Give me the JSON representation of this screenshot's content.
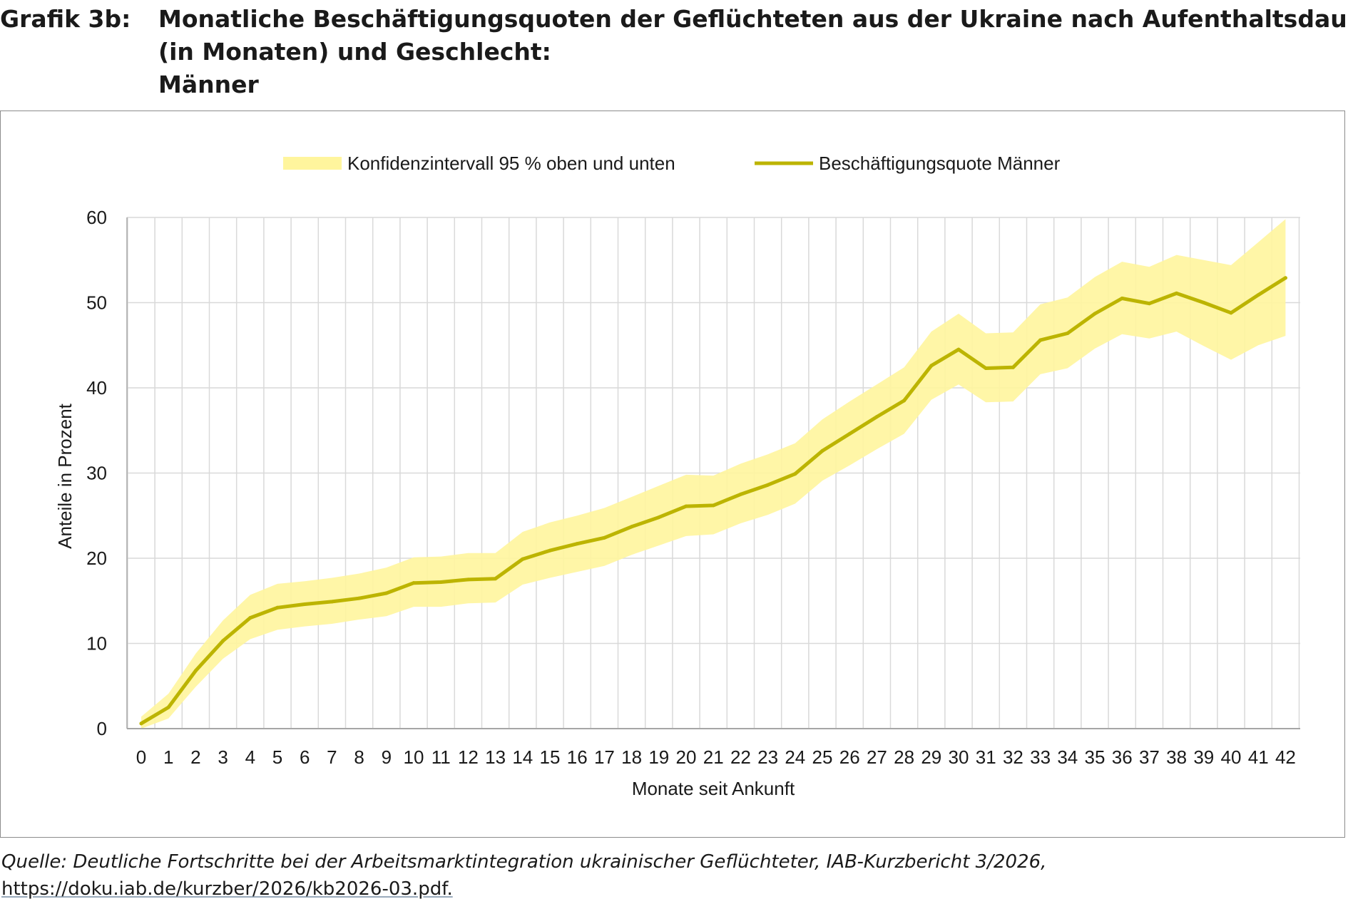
{
  "header": {
    "label": "Grafik 3b:",
    "title_line1": "Monatliche Beschäftigungsquoten der Geflüchteten aus der Ukraine nach Aufenthaltsdauer",
    "title_line2": "(in Monaten) und Geschlecht:",
    "title_line3": "Männer"
  },
  "footer": {
    "source_text": "Quelle: Deutliche Fortschritte bei der Arbeitsmarktintegration ukrainischer Geflüchteter, IAB-Kurzbericht 3/2026,",
    "link_text": "https://doku.iab.de/kurzber/2026/kb2026-03.pdf."
  },
  "colors": {
    "line": "#bcb400",
    "band": "#fff59d",
    "grid": "#d9d9d9",
    "axis": "#a6a6a6"
  },
  "chart_data": {
    "type": "line",
    "xlabel": "Monate seit Ankunft",
    "ylabel": "Anteile in Prozent",
    "ylim": [
      0,
      60
    ],
    "yticks": [
      0,
      10,
      20,
      30,
      40,
      50,
      60
    ],
    "grid": "vertical and horizontal",
    "legend_position": "top-center",
    "x": [
      0,
      1,
      2,
      3,
      4,
      5,
      6,
      7,
      8,
      9,
      10,
      11,
      12,
      13,
      14,
      15,
      16,
      17,
      18,
      19,
      20,
      21,
      22,
      23,
      24,
      25,
      26,
      27,
      28,
      29,
      30,
      31,
      32,
      33,
      34,
      35,
      36,
      37,
      38,
      39,
      40,
      41,
      42
    ],
    "series": [
      {
        "name": "Beschäftigungsquote Männer",
        "values": [
          0.6,
          2.5,
          6.8,
          10.3,
          13.0,
          14.2,
          14.6,
          14.9,
          15.3,
          15.9,
          17.1,
          17.2,
          17.5,
          17.6,
          19.9,
          20.9,
          21.7,
          22.4,
          23.7,
          24.8,
          26.1,
          26.2,
          27.5,
          28.6,
          29.9,
          32.6,
          34.6,
          36.6,
          38.5,
          42.6,
          44.5,
          42.3,
          42.4,
          45.6,
          46.4,
          48.7,
          50.5,
          49.9,
          51.1,
          50.0,
          48.8,
          50.9,
          52.9
        ]
      },
      {
        "name": "Konfidenzintervall 95 % oben und unten",
        "upper": [
          1.4,
          4.1,
          8.8,
          12.7,
          15.7,
          17.0,
          17.3,
          17.7,
          18.2,
          18.9,
          20.1,
          20.2,
          20.6,
          20.6,
          23.1,
          24.2,
          25.0,
          25.9,
          27.2,
          28.5,
          29.8,
          29.7,
          31.1,
          32.2,
          33.5,
          36.3,
          38.4,
          40.4,
          42.4,
          46.6,
          48.7,
          46.4,
          46.5,
          49.8,
          50.6,
          53.0,
          54.8,
          54.2,
          55.6,
          55.0,
          54.4,
          57.1,
          59.8
        ],
        "lower": [
          0.0,
          1.2,
          4.9,
          8.2,
          10.5,
          11.6,
          12.0,
          12.3,
          12.8,
          13.2,
          14.3,
          14.3,
          14.7,
          14.8,
          16.9,
          17.7,
          18.4,
          19.1,
          20.4,
          21.5,
          22.6,
          22.8,
          24.1,
          25.1,
          26.4,
          29.1,
          30.9,
          32.8,
          34.6,
          38.6,
          40.4,
          38.3,
          38.4,
          41.6,
          42.3,
          44.6,
          46.3,
          45.8,
          46.6,
          44.9,
          43.3,
          45.0,
          46.1
        ]
      }
    ]
  }
}
